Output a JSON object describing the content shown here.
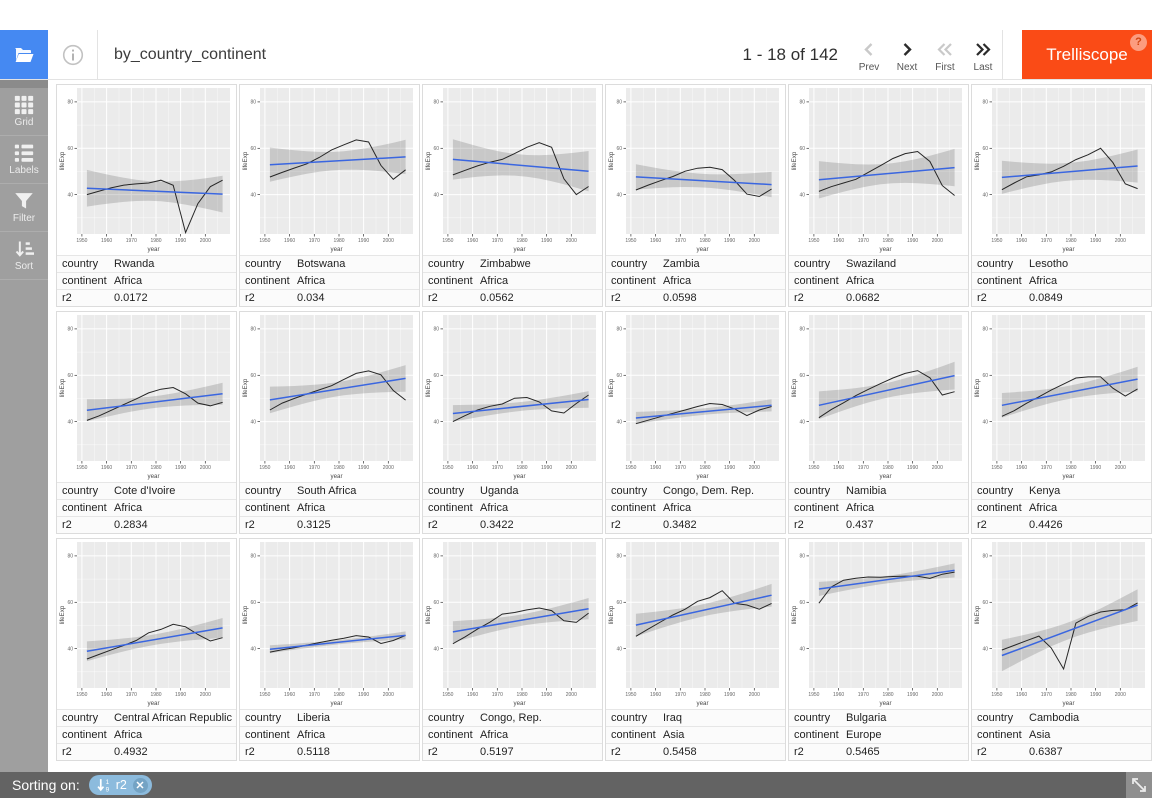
{
  "header": {
    "title": "by_country_continent",
    "pagination": {
      "range_label": "1 - 18 of 142",
      "prev": "Prev",
      "next": "Next",
      "first": "First",
      "last": "Last"
    },
    "app_button": "Trelliscope",
    "help_badge": "?"
  },
  "sidebar": {
    "items": [
      {
        "label": "Grid",
        "icon": "grid-icon"
      },
      {
        "label": "Labels",
        "icon": "labels-icon"
      },
      {
        "label": "Filter",
        "icon": "filter-icon"
      },
      {
        "label": "Sort",
        "icon": "sort-icon"
      }
    ]
  },
  "footer": {
    "sorting_label": "Sorting on:",
    "sort_pill": {
      "variable": "r2",
      "direction": "asc",
      "icon": "sort-numeric-asc-icon",
      "remove_icon": "remove-icon"
    },
    "resize_icon": "resize-diagonal-icon"
  },
  "colors": {
    "accent_blue": "#4589f2",
    "brand_orange": "#fa4b16",
    "sidebar_gray": "#9f9f9f",
    "footer_gray": "#636363",
    "pill_blue": "#8cbbdd",
    "smooth_line_blue": "#3a66e0",
    "panel_bg": "#ebebeb"
  },
  "panel_label_keys": [
    "country",
    "continent",
    "r2"
  ],
  "chart_data": {
    "type": "line",
    "x_label": "year",
    "y_label": "lifeExp",
    "x": [
      1952,
      1957,
      1962,
      1967,
      1972,
      1977,
      1982,
      1987,
      1992,
      1997,
      2002,
      2007
    ],
    "x_ticks": [
      1950,
      1960,
      1970,
      1980,
      1990,
      2000
    ],
    "y_ticks": [
      40,
      60,
      80
    ],
    "x_range": [
      1948,
      2010
    ],
    "y_range": [
      23,
      86
    ],
    "grid": true,
    "overlays": [
      "linear-fit",
      "confidence-band-95"
    ],
    "series": [
      {
        "country": "Rwanda",
        "continent": "Africa",
        "r2": "0.0172",
        "values": [
          40.0,
          41.5,
          43.0,
          44.1,
          44.6,
          45.0,
          46.2,
          44.0,
          23.6,
          36.1,
          43.4,
          46.2
        ]
      },
      {
        "country": "Botswana",
        "continent": "Africa",
        "r2": "0.034",
        "values": [
          47.6,
          49.6,
          51.5,
          53.3,
          56.0,
          59.3,
          61.5,
          63.6,
          62.7,
          52.6,
          46.6,
          50.7
        ]
      },
      {
        "country": "Zimbabwe",
        "continent": "Africa",
        "r2": "0.0562",
        "values": [
          48.5,
          50.5,
          52.4,
          54.0,
          55.2,
          57.7,
          60.4,
          62.4,
          60.4,
          46.8,
          40.0,
          43.5
        ]
      },
      {
        "country": "Zambia",
        "continent": "Africa",
        "r2": "0.0598",
        "values": [
          42.0,
          44.1,
          46.0,
          47.8,
          50.1,
          51.4,
          51.8,
          50.8,
          46.1,
          40.2,
          39.2,
          42.4
        ]
      },
      {
        "country": "Swaziland",
        "continent": "Africa",
        "r2": "0.0682",
        "values": [
          41.4,
          43.4,
          45.0,
          46.6,
          49.6,
          52.5,
          55.6,
          57.7,
          58.6,
          54.3,
          43.9,
          39.6
        ]
      },
      {
        "country": "Lesotho",
        "continent": "Africa",
        "r2": "0.0849",
        "values": [
          42.1,
          45.0,
          47.7,
          48.5,
          49.8,
          52.2,
          55.1,
          57.2,
          60.0,
          53.8,
          44.6,
          42.6
        ]
      },
      {
        "country": "Cote d'Ivoire",
        "continent": "Africa",
        "r2": "0.2834",
        "values": [
          40.5,
          42.5,
          44.9,
          47.4,
          49.8,
          52.4,
          54.0,
          54.7,
          52.0,
          48.0,
          46.8,
          48.3
        ]
      },
      {
        "country": "South Africa",
        "continent": "Africa",
        "r2": "0.3125",
        "values": [
          45.0,
          48.0,
          50.0,
          51.9,
          53.7,
          55.5,
          58.2,
          60.8,
          61.9,
          60.2,
          53.4,
          49.3
        ]
      },
      {
        "country": "Uganda",
        "continent": "Africa",
        "r2": "0.3422",
        "values": [
          40.0,
          42.6,
          45.0,
          46.6,
          47.6,
          50.1,
          50.4,
          48.5,
          44.6,
          43.7,
          47.8,
          51.5
        ]
      },
      {
        "country": "Congo, Dem. Rep.",
        "continent": "Africa",
        "r2": "0.3482",
        "values": [
          39.1,
          40.6,
          42.1,
          43.6,
          45.0,
          46.5,
          47.8,
          47.4,
          45.5,
          42.6,
          45.0,
          46.5
        ]
      },
      {
        "country": "Namibia",
        "continent": "Africa",
        "r2": "0.437",
        "values": [
          41.7,
          45.2,
          48.1,
          51.2,
          53.9,
          56.4,
          58.8,
          60.8,
          62.0,
          58.9,
          51.5,
          52.9
        ]
      },
      {
        "country": "Kenya",
        "continent": "Africa",
        "r2": "0.4426",
        "values": [
          42.3,
          44.7,
          47.9,
          50.7,
          53.6,
          56.2,
          58.8,
          59.3,
          59.3,
          54.4,
          51.0,
          54.1
        ]
      },
      {
        "country": "Central African Republic",
        "continent": "Africa",
        "r2": "0.4932",
        "values": [
          35.5,
          37.5,
          39.5,
          41.4,
          43.5,
          46.8,
          48.3,
          50.5,
          49.4,
          46.1,
          43.3,
          44.7
        ]
      },
      {
        "country": "Liberia",
        "continent": "Africa",
        "r2": "0.5118",
        "values": [
          38.5,
          39.5,
          40.4,
          41.5,
          42.6,
          43.6,
          44.5,
          45.6,
          45.0,
          42.2,
          43.5,
          45.7
        ]
      },
      {
        "country": "Congo, Rep.",
        "continent": "Africa",
        "r2": "0.5197",
        "values": [
          42.1,
          45.1,
          48.4,
          51.4,
          54.9,
          55.6,
          56.7,
          57.5,
          56.4,
          52.0,
          51.3,
          55.3
        ]
      },
      {
        "country": "Iraq",
        "continent": "Asia",
        "r2": "0.5458",
        "values": [
          45.3,
          48.4,
          51.5,
          54.5,
          57.0,
          60.4,
          62.0,
          65.0,
          59.5,
          58.8,
          57.0,
          59.5
        ]
      },
      {
        "country": "Bulgaria",
        "continent": "Europe",
        "r2": "0.5465",
        "values": [
          59.6,
          66.6,
          69.5,
          70.4,
          70.9,
          70.8,
          71.1,
          71.3,
          71.2,
          70.3,
          72.1,
          73.0
        ]
      },
      {
        "country": "Cambodia",
        "continent": "Asia",
        "r2": "0.6387",
        "values": [
          39.4,
          41.4,
          43.4,
          45.4,
          40.3,
          31.2,
          51.0,
          53.9,
          55.8,
          56.5,
          56.8,
          59.7
        ]
      }
    ]
  }
}
